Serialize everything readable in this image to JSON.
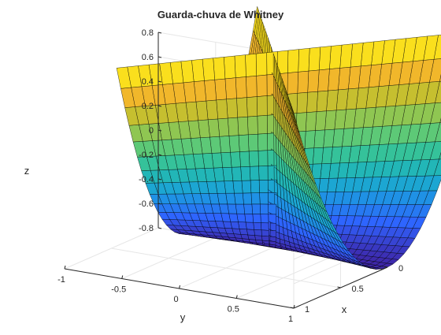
{
  "chart_data": {
    "type": "surface3d",
    "title": "Guarda-chuva de Whitney",
    "xlabel": "x",
    "ylabel": "y",
    "zlabel": "z",
    "surface": {
      "name": "",
      "equations": {
        "x": "u*v",
        "y": "u",
        "z": "v^2"
      },
      "x_shown": "u*v",
      "y_shown": "u",
      "z_shown": "0.8*v^2 - 0.8*(1 - v^2)"
    },
    "param_u_range": [
      -0.75,
      1
    ],
    "param_v_range": [
      -1,
      1
    ],
    "xlim": [
      0,
      1
    ],
    "ylim": [
      -1,
      1
    ],
    "zlim": [
      -0.8,
      0.8
    ],
    "x_ticks": [
      "0",
      "0.5",
      "1"
    ],
    "y_ticks": [
      "-1",
      "-0.5",
      "0",
      "0.5",
      "1"
    ],
    "z_ticks": [
      "-0.8",
      "-0.6",
      "-0.4",
      "-0.2",
      "0",
      "0.2",
      "0.4",
      "0.6",
      "0.8"
    ],
    "colormap": [
      "#3e26a8",
      "#2f63ff",
      "#1aa0dc",
      "#26c0a6",
      "#6ccb6b",
      "#c0c02f",
      "#fbb52a",
      "#f9fb15"
    ],
    "grid": true,
    "edge_color": "#000000",
    "view": "3d-perspective"
  }
}
